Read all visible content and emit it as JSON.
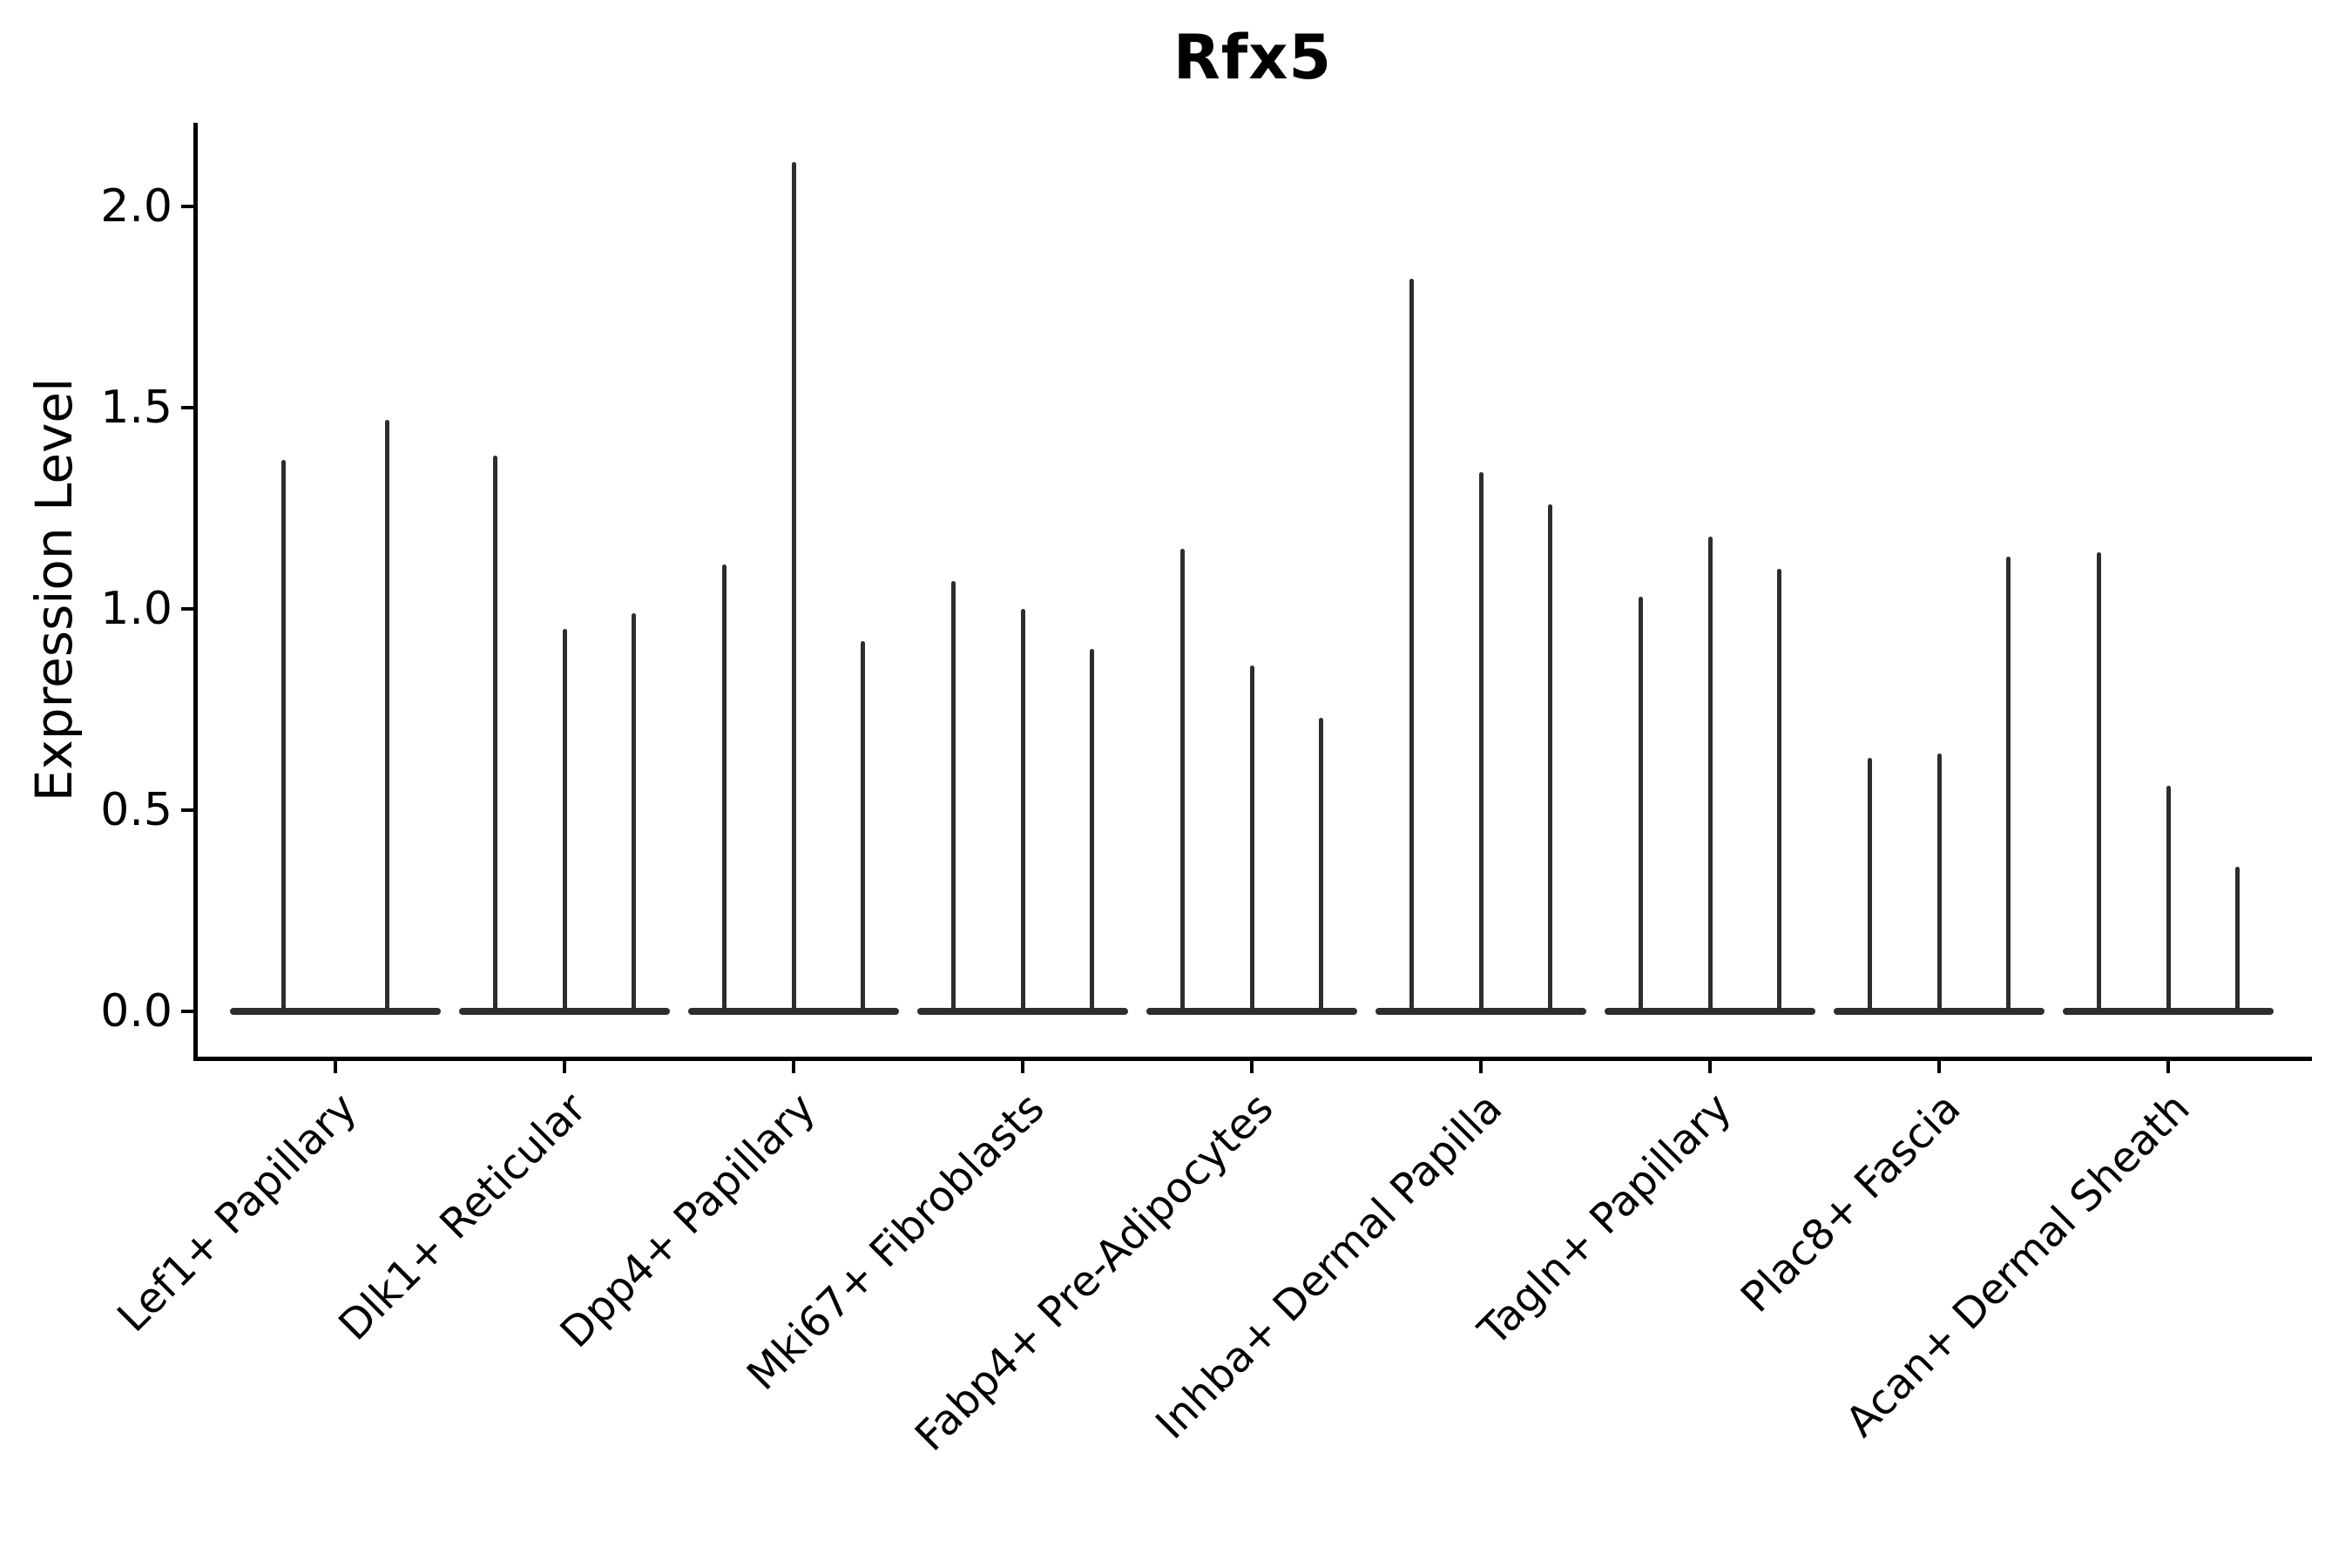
{
  "figure": {
    "title": "Rfx5",
    "y_axis": {
      "label": "Expression Level",
      "tick_labels": [
        "0.0",
        "0.5",
        "1.0",
        "1.5",
        "2.0"
      ]
    },
    "x_axis": {
      "tick_labels": [
        "Lef1+ Papillary",
        "Dlk1+ Reticular",
        "Dpp4+ Papillary",
        "Mki67+ Fibroblasts",
        "Fabp4+ Pre-Adipocytes",
        "Inhba+ Dermal Papilla",
        "Tagln+ Papillary",
        "Plac8+ Fascia",
        "Acan+ Dermal Sheath"
      ]
    }
  },
  "chart_data": {
    "type": "violin",
    "title": "Rfx5",
    "xlabel": "",
    "ylabel": "Expression Level",
    "ylim": [
      -0.11,
      2.21
    ],
    "yticks": [
      0.0,
      0.5,
      1.0,
      1.5,
      2.0
    ],
    "grid": false,
    "legend": "none",
    "categories": [
      "Lef1+ Papillary",
      "Dlk1+ Reticular",
      "Dpp4+ Papillary",
      "Mki67+ Fibroblasts",
      "Fabp4+ Pre-Adipocytes",
      "Inhba+ Dermal Papilla",
      "Tagln+ Papillary",
      "Plac8+ Fascia",
      "Acan+ Dermal Sheath"
    ],
    "series": [
      {
        "category": "Lef1+ Papillary",
        "violin_max_expression": [
          1.37,
          1.47
        ]
      },
      {
        "category": "Dlk1+ Reticular",
        "violin_max_expression": [
          1.38,
          0.95,
          0.99
        ]
      },
      {
        "category": "Dpp4+ Papillary",
        "violin_max_expression": [
          1.11,
          2.11,
          0.92
        ]
      },
      {
        "category": "Mki67+ Fibroblasts",
        "violin_max_expression": [
          1.07,
          1.0,
          0.9
        ]
      },
      {
        "category": "Fabp4+ Pre-Adipocytes",
        "violin_max_expression": [
          1.15,
          0.86,
          0.73
        ]
      },
      {
        "category": "Inhba+ Dermal Papilla",
        "violin_max_expression": [
          1.82,
          1.34,
          1.26
        ]
      },
      {
        "category": "Tagln+ Papillary",
        "violin_max_expression": [
          1.03,
          1.18,
          1.1
        ]
      },
      {
        "category": "Plac8+ Fascia",
        "violin_max_expression": [
          0.63,
          0.64,
          1.13
        ]
      },
      {
        "category": "Acan+ Dermal Sheath",
        "violin_max_expression": [
          1.14,
          0.56,
          0.36
        ]
      }
    ]
  },
  "colors": {
    "ink": "#000000",
    "violin": "#2d2d2d",
    "background": "#ffffff"
  }
}
